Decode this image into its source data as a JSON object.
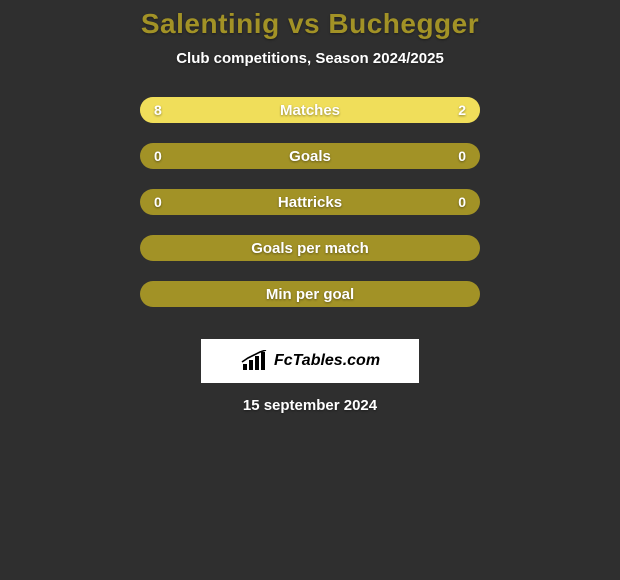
{
  "background_color": "#2f2f2f",
  "title_color": "#a29226",
  "text_color": "#ffffff",
  "title": "Salentinig vs Buchegger",
  "subtitle": "Club competitions, Season 2024/2025",
  "ellipse_color": "#ffffff",
  "pill_empty_color": "#a29226",
  "pill_fill_color": "#f0de5a",
  "rows": [
    {
      "label": "Matches",
      "left_value": "8",
      "right_value": "2",
      "left_pct": 80,
      "right_pct": 20,
      "show_ellipses": true,
      "ellipse_left_width": 112,
      "ellipse_right_width": 112,
      "show_values": true
    },
    {
      "label": "Goals",
      "left_value": "0",
      "right_value": "0",
      "left_pct": 0,
      "right_pct": 0,
      "show_ellipses": true,
      "ellipse_left_width": 100,
      "ellipse_right_width": 100,
      "show_values": true
    },
    {
      "label": "Hattricks",
      "left_value": "0",
      "right_value": "0",
      "left_pct": 0,
      "right_pct": 0,
      "show_ellipses": false,
      "show_values": true
    },
    {
      "label": "Goals per match",
      "left_value": "",
      "right_value": "",
      "left_pct": 0,
      "right_pct": 0,
      "show_ellipses": false,
      "show_values": false
    },
    {
      "label": "Min per goal",
      "left_value": "",
      "right_value": "",
      "left_pct": 0,
      "right_pct": 0,
      "show_ellipses": false,
      "show_values": false
    }
  ],
  "brand": {
    "background": "#ffffff",
    "text_color": "#000000",
    "label": "FcTables.com",
    "icon_color": "#000000"
  },
  "date": "15 september 2024"
}
